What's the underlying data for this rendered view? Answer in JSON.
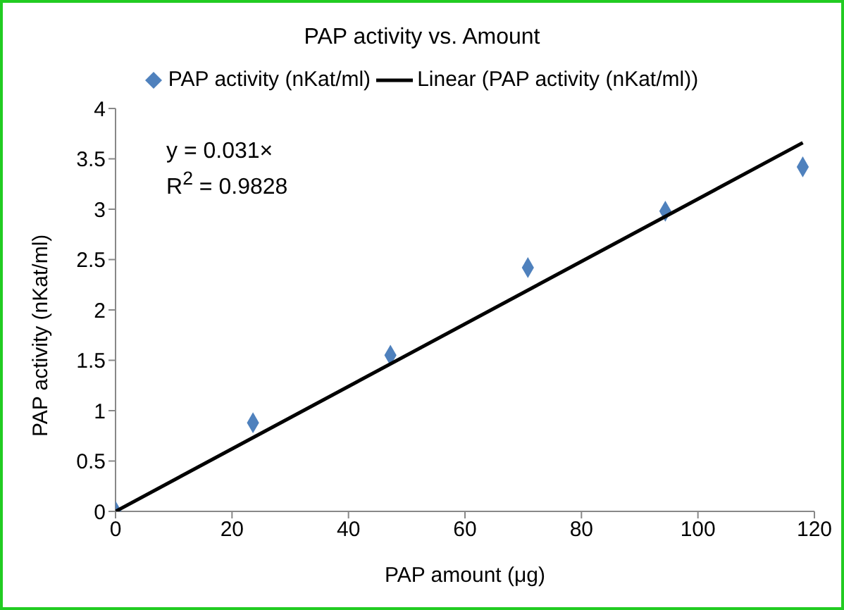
{
  "chart_data": {
    "type": "scatter",
    "title": "PAP activity vs. Amount",
    "xlabel": "PAP amount (μg)",
    "ylabel": "PAP activity (nKat/ml)",
    "xlim": [
      0,
      120
    ],
    "xticks": [
      0,
      20,
      40,
      60,
      80,
      100,
      120
    ],
    "ylim": [
      0,
      4
    ],
    "yticks": [
      0,
      0.5,
      1,
      1.5,
      2,
      2.5,
      3,
      3.5,
      4
    ],
    "grid": false,
    "legend": "top",
    "annotations": [
      "y = 0.031×",
      "R$^{2}$ = 0.9828"
    ],
    "series": [
      {
        "name": "PAP activity (nKat/ml)",
        "type": "scatter",
        "marker": "diamond",
        "color": "#4f81bd",
        "x": [
          0,
          23.6,
          47.2,
          70.8,
          94.4,
          118
        ],
        "values": [
          0,
          0.88,
          1.55,
          2.42,
          2.98,
          3.42
        ]
      },
      {
        "name": "Linear (PAP activity (nKat/ml))",
        "type": "line",
        "color": "#000000",
        "x": [
          0,
          118
        ],
        "values": [
          0,
          3.66
        ],
        "marker": "none",
        "line_style": "solid"
      }
    ]
  }
}
